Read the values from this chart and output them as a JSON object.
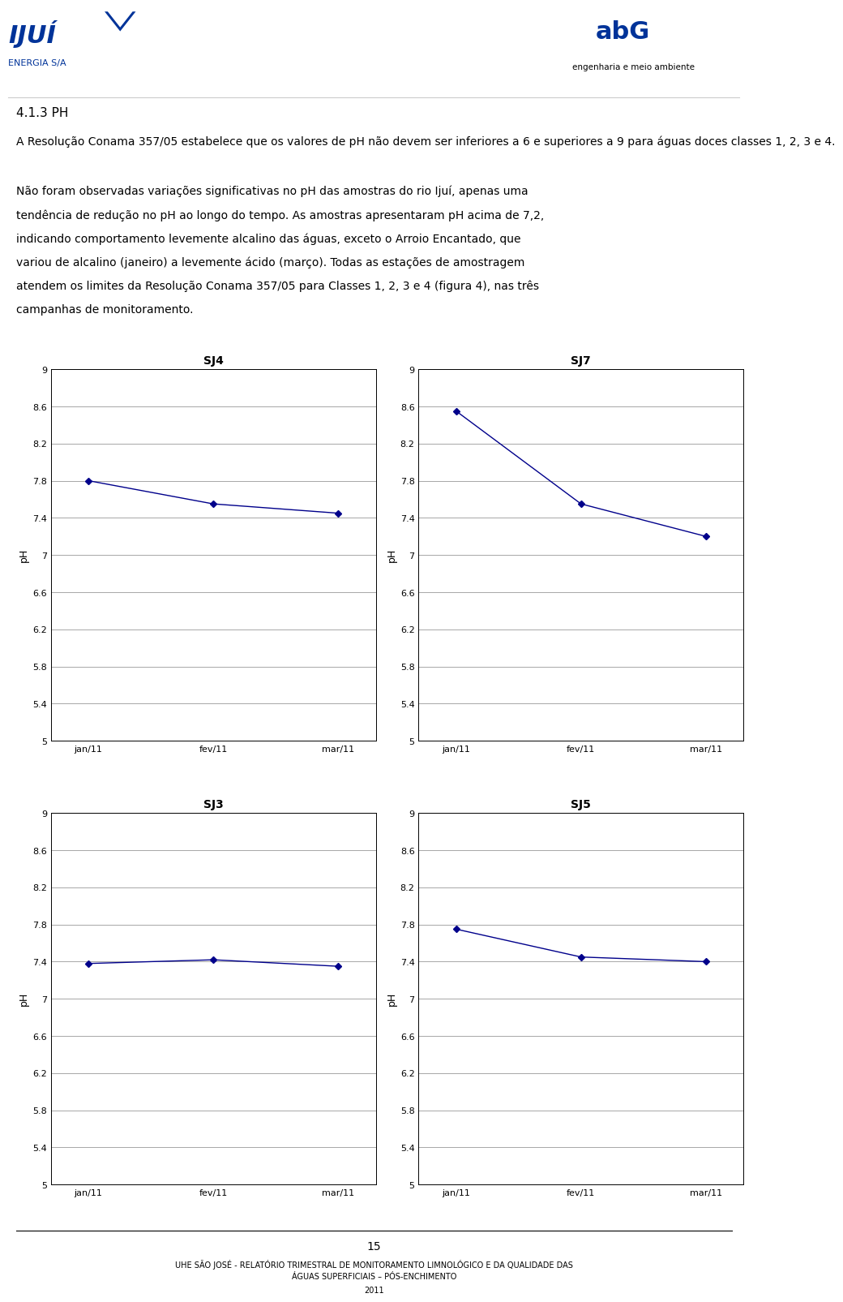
{
  "charts": [
    {
      "title": "SJ4",
      "x_labels": [
        "jan/11",
        "fev/11",
        "mar/11"
      ],
      "y_values": [
        7.8,
        7.55,
        7.45
      ]
    },
    {
      "title": "SJ7",
      "x_labels": [
        "jan/11",
        "fev/11",
        "mar/11"
      ],
      "y_values": [
        8.55,
        7.55,
        7.2
      ]
    },
    {
      "title": "SJ3",
      "x_labels": [
        "jan/11",
        "fev/11",
        "mar/11"
      ],
      "y_values": [
        7.38,
        7.42,
        7.35
      ]
    },
    {
      "title": "SJ5",
      "x_labels": [
        "jan/11",
        "fev/11",
        "mar/11"
      ],
      "y_values": [
        7.75,
        7.45,
        7.4
      ]
    }
  ],
  "y_ticks": [
    5,
    5.4,
    5.8,
    6.2,
    6.6,
    7,
    7.4,
    7.8,
    8.2,
    8.6,
    9
  ],
  "ylim": [
    5,
    9
  ],
  "ylabel": "pH",
  "line_color": "#00008B",
  "marker": "D",
  "marker_size": 4,
  "line_width": 1.0,
  "background_color": "#ffffff",
  "grid_color": "#999999",
  "title_fontsize": 10,
  "tick_fontsize": 8,
  "ylabel_fontsize": 9,
  "section_title": "4.1.3 PH",
  "para1": "A Resolução Conama 357/05 estabelece que os valores de pH não devem ser inferiores a 6 e superiores a 9 para águas doces classes 1, 2, 3 e 4.",
  "para2_line1": "Não foram observadas variações significativas no pH das amostras do rio Ijuí, apenas uma",
  "para2_line2": "tendência de redução no pH ao longo do tempo. As amostras apresentaram pH acima de 7,2,",
  "para2_line3": "indicando comportamento levemente alcalino das águas, exceto o Arroio Encantado, que",
  "para2_line4": "variou de alcalino (janeiro) a levemente ácido (março). Todas as estações de amostragem",
  "para2_line5": "atendem os limites da Resolução Conama 357/05 para Classes 1, 2, 3 e 4 (figura 4), nas três",
  "para2_line6": "campanhas de monitoramento.",
  "footer_page": "15",
  "footer_line1": "UHE SÃO JOSÉ - RELATÓRIO TRIMESTRAL DE MONITORAMENTO LIMNOLÓGICO E DA QUALIDADE DAS",
  "footer_line2": "ÁGUAS SUPERFICIAIS – PÓS-ENCHIMENTO",
  "footer_line3": "2011",
  "header_left_line1": "4.1.3 PH",
  "logo_left_text1": "IJUÍ",
  "logo_left_text2": "ENERGIA S/A",
  "logo_right_text1": "abG",
  "logo_right_text2": "engenharia e meio ambiente"
}
